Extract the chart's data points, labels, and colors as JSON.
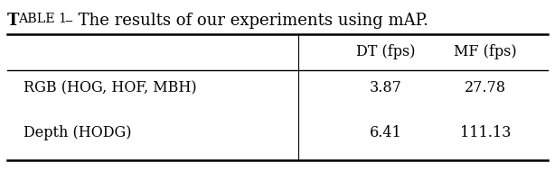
{
  "title_smallcaps": "TABLE 1",
  "title_normal": " – The results of our experiments using mAP.",
  "col_headers": [
    "",
    "DT (fps)",
    "MF (fps)"
  ],
  "rows": [
    [
      "RGB (HOG, HOF, MBH)",
      "3.87",
      "27.78"
    ],
    [
      "Depth (HODG)",
      "6.41",
      "111.13"
    ]
  ],
  "background_color": "#ffffff",
  "title_fontsize": 13.0,
  "table_fontsize": 11.5
}
